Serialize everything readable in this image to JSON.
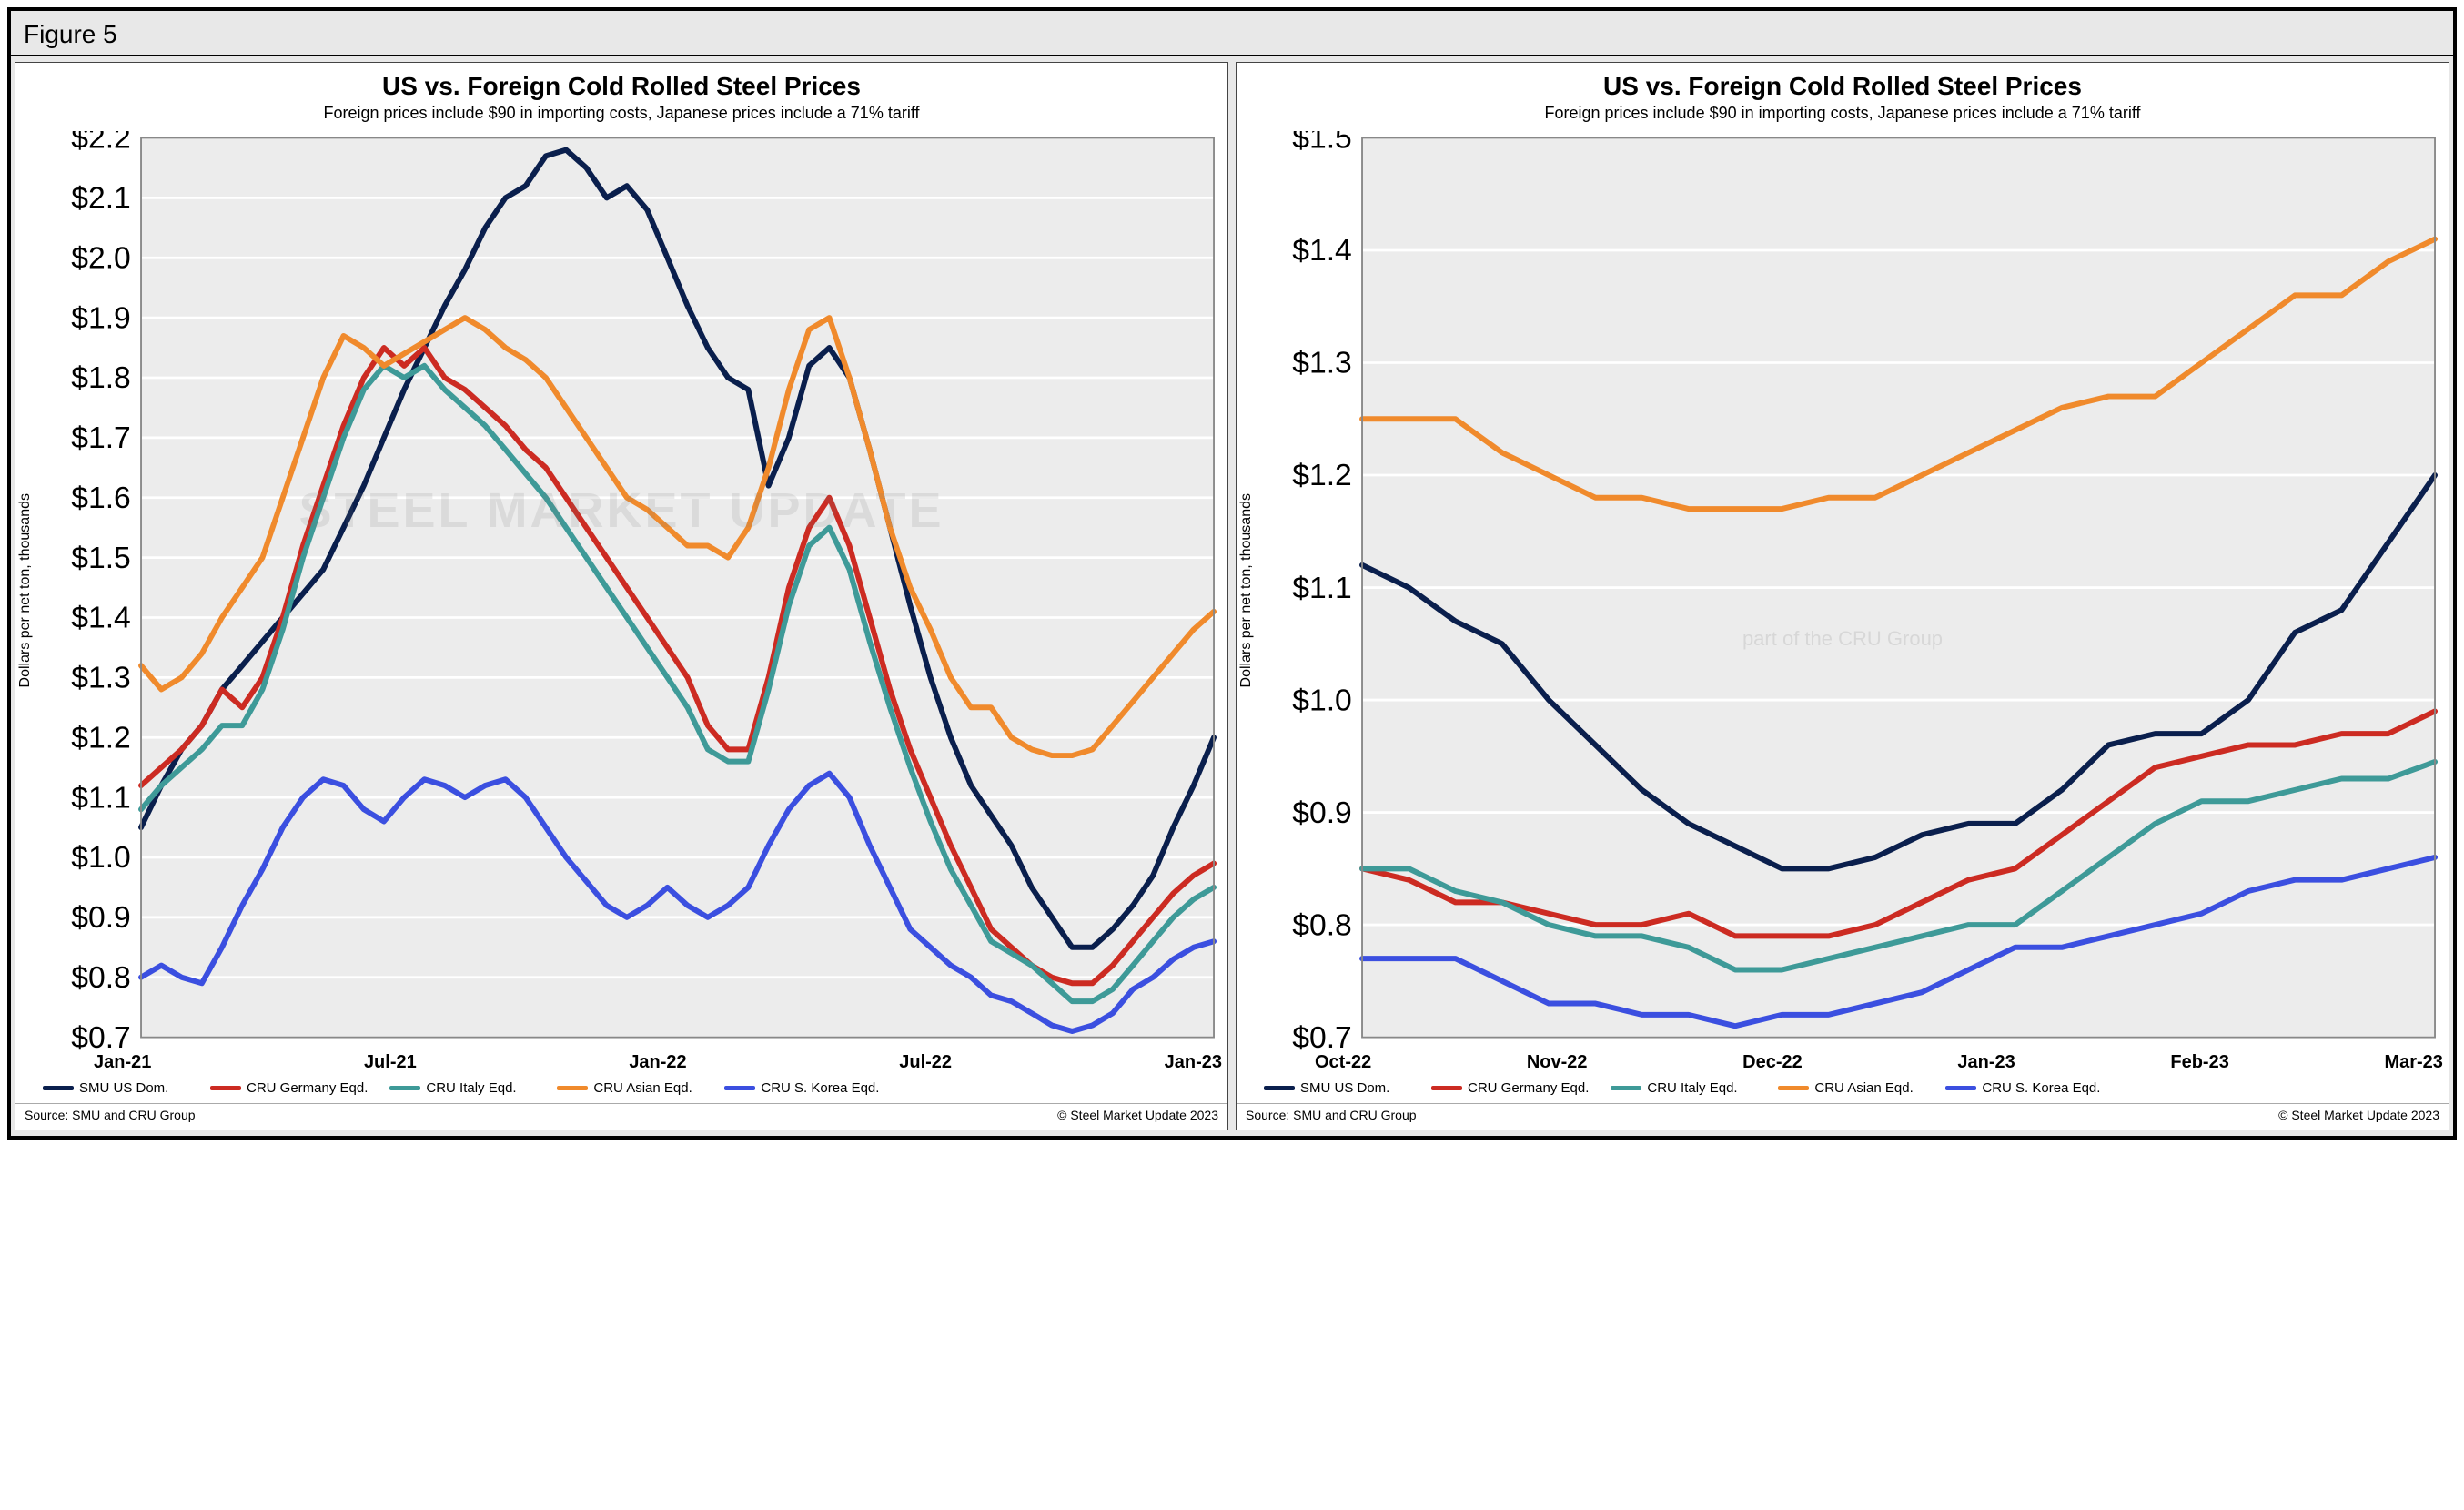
{
  "figure_label": "Figure 5",
  "watermark_main": "STEEL MARKET UPDATE",
  "watermark_sub": "part of the CRU Group",
  "panels": [
    {
      "title": "US vs. Foreign Cold Rolled Steel Prices",
      "subtitle": "Foreign prices include $90 in importing costs,\nJapanese prices include a 71% tariff",
      "ylabel": "Dollars per net ton, thousands",
      "ylim": [
        0.7,
        2.2
      ],
      "ytick_step": 0.1,
      "ytick_prefix": "$",
      "ytick_decimals": 1,
      "x_labels": [
        "Jan-21",
        "Jul-21",
        "Jan-22",
        "Jul-22",
        "Jan-23"
      ],
      "x_count": 54,
      "plot_bg": "#ececec",
      "grid_color": "#ffffff",
      "line_width": 3.2,
      "series": [
        {
          "name": "SMU US Dom.",
          "color": "#0a1f4d",
          "y": [
            1.05,
            1.12,
            1.18,
            1.22,
            1.28,
            1.32,
            1.36,
            1.4,
            1.44,
            1.48,
            1.55,
            1.62,
            1.7,
            1.78,
            1.85,
            1.92,
            1.98,
            2.05,
            2.1,
            2.12,
            2.17,
            2.18,
            2.15,
            2.1,
            2.12,
            2.08,
            2.0,
            1.92,
            1.85,
            1.8,
            1.78,
            1.62,
            1.7,
            1.82,
            1.85,
            1.8,
            1.68,
            1.55,
            1.42,
            1.3,
            1.2,
            1.12,
            1.07,
            1.02,
            0.95,
            0.9,
            0.85,
            0.85,
            0.88,
            0.92,
            0.97,
            1.05,
            1.12,
            1.2
          ]
        },
        {
          "name": "CRU Germany Eqd.",
          "color": "#cc2b22",
          "y": [
            1.12,
            1.15,
            1.18,
            1.22,
            1.28,
            1.25,
            1.3,
            1.4,
            1.52,
            1.62,
            1.72,
            1.8,
            1.85,
            1.82,
            1.85,
            1.8,
            1.78,
            1.75,
            1.72,
            1.68,
            1.65,
            1.6,
            1.55,
            1.5,
            1.45,
            1.4,
            1.35,
            1.3,
            1.22,
            1.18,
            1.18,
            1.3,
            1.45,
            1.55,
            1.6,
            1.52,
            1.4,
            1.28,
            1.18,
            1.1,
            1.02,
            0.95,
            0.88,
            0.85,
            0.82,
            0.8,
            0.79,
            0.79,
            0.82,
            0.86,
            0.9,
            0.94,
            0.97,
            0.99
          ]
        },
        {
          "name": "CRU Italy Eqd.",
          "color": "#3e9a98",
          "y": [
            1.08,
            1.12,
            1.15,
            1.18,
            1.22,
            1.22,
            1.28,
            1.38,
            1.5,
            1.6,
            1.7,
            1.78,
            1.82,
            1.8,
            1.82,
            1.78,
            1.75,
            1.72,
            1.68,
            1.64,
            1.6,
            1.55,
            1.5,
            1.45,
            1.4,
            1.35,
            1.3,
            1.25,
            1.18,
            1.16,
            1.16,
            1.28,
            1.42,
            1.52,
            1.55,
            1.48,
            1.36,
            1.25,
            1.15,
            1.06,
            0.98,
            0.92,
            0.86,
            0.84,
            0.82,
            0.79,
            0.76,
            0.76,
            0.78,
            0.82,
            0.86,
            0.9,
            0.93,
            0.95
          ]
        },
        {
          "name": "CRU Asian Eqd.",
          "color": "#f08a2c",
          "y": [
            1.32,
            1.28,
            1.3,
            1.34,
            1.4,
            1.45,
            1.5,
            1.6,
            1.7,
            1.8,
            1.87,
            1.85,
            1.82,
            1.84,
            1.86,
            1.88,
            1.9,
            1.88,
            1.85,
            1.83,
            1.8,
            1.75,
            1.7,
            1.65,
            1.6,
            1.58,
            1.55,
            1.52,
            1.52,
            1.5,
            1.55,
            1.65,
            1.78,
            1.88,
            1.9,
            1.8,
            1.68,
            1.55,
            1.45,
            1.38,
            1.3,
            1.25,
            1.25,
            1.2,
            1.18,
            1.17,
            1.17,
            1.18,
            1.22,
            1.26,
            1.3,
            1.34,
            1.38,
            1.41
          ]
        },
        {
          "name": "CRU S. Korea Eqd.",
          "color": "#3b4fe0",
          "y": [
            0.8,
            0.82,
            0.8,
            0.79,
            0.85,
            0.92,
            0.98,
            1.05,
            1.1,
            1.13,
            1.12,
            1.08,
            1.06,
            1.1,
            1.13,
            1.12,
            1.1,
            1.12,
            1.13,
            1.1,
            1.05,
            1.0,
            0.96,
            0.92,
            0.9,
            0.92,
            0.95,
            0.92,
            0.9,
            0.92,
            0.95,
            1.02,
            1.08,
            1.12,
            1.14,
            1.1,
            1.02,
            0.95,
            0.88,
            0.85,
            0.82,
            0.8,
            0.77,
            0.76,
            0.74,
            0.72,
            0.71,
            0.72,
            0.74,
            0.78,
            0.8,
            0.83,
            0.85,
            0.86
          ]
        }
      ],
      "source": "Source: SMU and CRU Group",
      "copyright": "© Steel Market Update 2023"
    },
    {
      "title": "US vs. Foreign Cold Rolled Steel Prices",
      "subtitle": "Foreign prices include $90 in importing costs,\nJapanese prices include a 71% tariff",
      "ylabel": "Dollars per net ton, thousands",
      "ylim": [
        0.7,
        1.5
      ],
      "ytick_step": 0.1,
      "ytick_prefix": "$",
      "ytick_decimals": 1,
      "x_labels": [
        "Oct-22",
        "Nov-22",
        "Dec-22",
        "Jan-23",
        "Feb-23",
        "Mar-23"
      ],
      "x_count": 24,
      "plot_bg": "#ececec",
      "grid_color": "#ffffff",
      "line_width": 3.2,
      "series": [
        {
          "name": "SMU US Dom.",
          "color": "#0a1f4d",
          "y": [
            1.12,
            1.1,
            1.07,
            1.05,
            1.0,
            0.96,
            0.92,
            0.89,
            0.87,
            0.85,
            0.85,
            0.86,
            0.88,
            0.89,
            0.89,
            0.92,
            0.96,
            0.97,
            0.97,
            1.0,
            1.06,
            1.08,
            1.14,
            1.2
          ]
        },
        {
          "name": "CRU Germany Eqd.",
          "color": "#cc2b22",
          "y": [
            0.85,
            0.84,
            0.82,
            0.82,
            0.81,
            0.8,
            0.8,
            0.81,
            0.79,
            0.79,
            0.79,
            0.8,
            0.82,
            0.84,
            0.85,
            0.88,
            0.91,
            0.94,
            0.95,
            0.96,
            0.96,
            0.97,
            0.97,
            0.99
          ]
        },
        {
          "name": "CRU Italy Eqd.",
          "color": "#3e9a98",
          "y": [
            0.85,
            0.85,
            0.83,
            0.82,
            0.8,
            0.79,
            0.79,
            0.78,
            0.76,
            0.76,
            0.77,
            0.78,
            0.79,
            0.8,
            0.8,
            0.83,
            0.86,
            0.89,
            0.91,
            0.91,
            0.92,
            0.93,
            0.93,
            0.945
          ]
        },
        {
          "name": "CRU Asian Eqd.",
          "color": "#f08a2c",
          "y": [
            1.25,
            1.25,
            1.25,
            1.22,
            1.2,
            1.18,
            1.18,
            1.17,
            1.17,
            1.17,
            1.18,
            1.18,
            1.2,
            1.22,
            1.24,
            1.26,
            1.27,
            1.27,
            1.3,
            1.33,
            1.36,
            1.36,
            1.39,
            1.41
          ]
        },
        {
          "name": "CRU S. Korea Eqd.",
          "color": "#3b4fe0",
          "y": [
            0.77,
            0.77,
            0.77,
            0.75,
            0.73,
            0.73,
            0.72,
            0.72,
            0.71,
            0.72,
            0.72,
            0.73,
            0.74,
            0.76,
            0.78,
            0.78,
            0.79,
            0.8,
            0.81,
            0.83,
            0.84,
            0.84,
            0.85,
            0.86
          ]
        }
      ],
      "source": "Source: SMU and CRU Group",
      "copyright": "© Steel Market Update 2023"
    }
  ]
}
